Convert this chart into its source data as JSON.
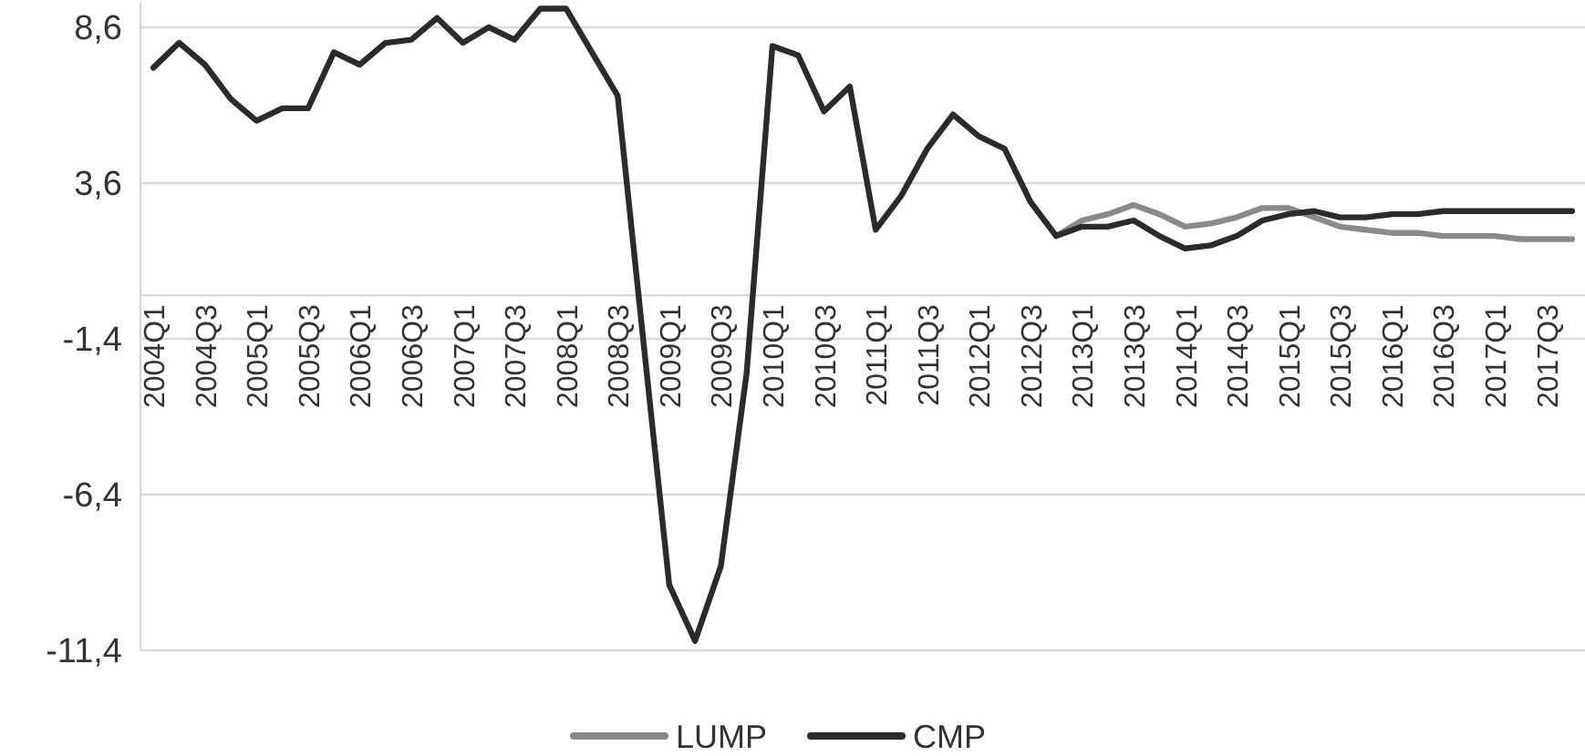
{
  "chart_data": {
    "type": "line",
    "categories": [
      "2004Q1",
      null,
      "2004Q3",
      null,
      "2005Q1",
      null,
      "2005Q3",
      null,
      "2006Q1",
      null,
      "2006Q3",
      null,
      "2007Q1",
      null,
      "2007Q3",
      null,
      "2008Q1",
      null,
      "2008Q3",
      null,
      "2009Q1",
      null,
      "2009Q3",
      null,
      "2010Q1",
      null,
      "2010Q3",
      null,
      "2011Q1",
      null,
      "2011Q3",
      null,
      "2012Q1",
      null,
      "2012Q3",
      null,
      "2013Q1",
      null,
      "2013Q3",
      null,
      "2014Q1",
      null,
      "2014Q3",
      null,
      "2015Q1",
      null,
      "2015Q3",
      null,
      "2016Q1",
      null,
      "2016Q3",
      null,
      "2017Q1",
      null,
      "2017Q3",
      null
    ],
    "series": [
      {
        "name": "LUMP",
        "color": "#8a8a8a",
        "values": [
          null,
          null,
          null,
          null,
          null,
          null,
          null,
          null,
          null,
          null,
          null,
          null,
          null,
          null,
          null,
          null,
          null,
          null,
          null,
          null,
          null,
          null,
          null,
          null,
          null,
          null,
          null,
          null,
          null,
          null,
          null,
          null,
          null,
          null,
          null,
          1.9,
          2.4,
          2.6,
          2.9,
          2.6,
          2.2,
          2.3,
          2.5,
          2.8,
          2.8,
          2.5,
          2.2,
          2.1,
          2.0,
          2.0,
          1.9,
          1.9,
          1.9,
          1.8,
          1.8,
          1.8
        ]
      },
      {
        "name": "CMP",
        "color": "#2b2b2b",
        "values": [
          7.3,
          8.1,
          7.4,
          6.3,
          5.6,
          6.0,
          6.0,
          7.8,
          7.4,
          8.1,
          8.2,
          8.9,
          8.1,
          8.6,
          8.2,
          9.2,
          9.2,
          7.8,
          6.4,
          -1.5,
          -9.3,
          -11.1,
          -8.7,
          -2.5,
          8.0,
          7.7,
          5.9,
          6.7,
          2.1,
          3.2,
          4.7,
          5.8,
          5.1,
          4.7,
          3.0,
          1.9,
          2.2,
          2.2,
          2.4,
          1.9,
          1.5,
          1.6,
          1.9,
          2.4,
          2.6,
          2.7,
          2.5,
          2.5,
          2.6,
          2.6,
          2.7,
          2.7,
          2.7,
          2.7,
          2.7,
          2.7
        ]
      }
    ],
    "ylim": [
      -11.4,
      9.4
    ],
    "yticks": [
      {
        "value": -11.4,
        "label": "-11,4"
      },
      {
        "value": -6.4,
        "label": "-6,4"
      },
      {
        "value": -1.4,
        "label": "-1,4"
      },
      {
        "value": 3.6,
        "label": "3,6"
      },
      {
        "value": 8.6,
        "label": "8,6"
      }
    ],
    "grid": "y",
    "legend": "bottom",
    "line_style": "solid"
  }
}
